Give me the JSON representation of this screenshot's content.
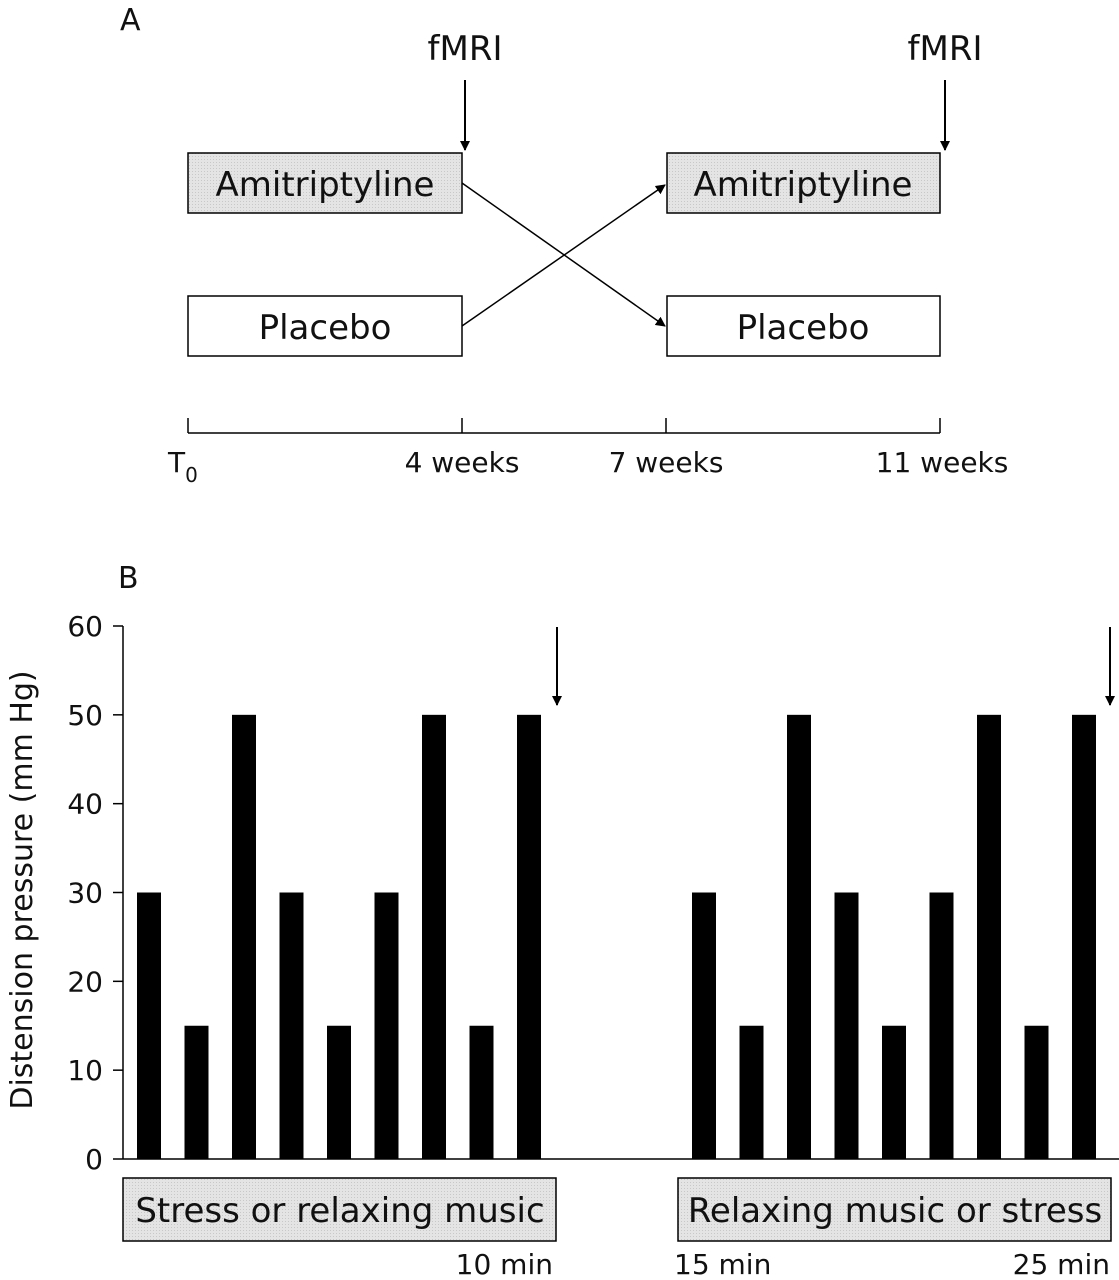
{
  "panel_a": {
    "label": "A",
    "fmri_label": "fMRI",
    "boxes": {
      "amitriptyline": "Amitriptyline",
      "placebo": "Placebo"
    },
    "timeline": {
      "t0_main": "T",
      "t0_sub": "0",
      "t4": "4 weeks",
      "t7": "7 weeks",
      "t11": "11 weeks"
    }
  },
  "panel_b": {
    "label": "B",
    "ylabel": "Distension pressure (mm Hg)",
    "condition_1": "Stress or relaxing music",
    "condition_2": "Relaxing music or stress",
    "time_labels": {
      "t10": "10 min",
      "t15": "15 min",
      "t25": "25 min"
    }
  },
  "chart_data": {
    "type": "bar",
    "ylabel": "Distension pressure (mm Hg)",
    "ylim": [
      0,
      60
    ],
    "yticks": [
      0,
      10,
      20,
      30,
      40,
      50,
      60
    ],
    "grid": false,
    "series": [
      {
        "values": [
          30,
          15,
          50,
          30,
          15,
          30,
          50,
          15,
          50
        ]
      },
      {
        "values": [
          30,
          15,
          50,
          30,
          15,
          30,
          50,
          15,
          50
        ]
      }
    ],
    "colors": {
      "bar": "#000000",
      "box_fill": "#e6e6e6"
    }
  }
}
